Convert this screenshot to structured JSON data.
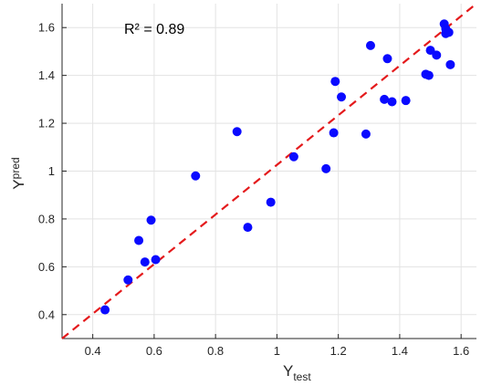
{
  "chart_data": {
    "type": "scatter",
    "annotation": "R² = 0.89",
    "xlabel": {
      "main": "Y",
      "sub": "test"
    },
    "ylabel": {
      "main": "Y",
      "sub": "pred"
    },
    "xlim": [
      0.3,
      1.65
    ],
    "ylim": [
      0.3,
      1.7
    ],
    "x_ticks": [
      0.4,
      0.6,
      0.8,
      1,
      1.2,
      1.4,
      1.6
    ],
    "x_tick_labels": [
      "0.4",
      "0.6",
      "0.8",
      "1",
      "1.2",
      "1.4",
      "1.6"
    ],
    "y_ticks": [
      0.4,
      0.6,
      0.8,
      1,
      1.2,
      1.4,
      1.6
    ],
    "y_tick_labels": [
      "0.4",
      "0.6",
      "0.8",
      "1",
      "1.2",
      "1.4",
      "1.6"
    ],
    "grid": true,
    "reference_line": {
      "style": "dashed",
      "color": "#e41a1c",
      "from": [
        0.3,
        0.3
      ],
      "to": [
        1.65,
        1.7
      ]
    },
    "marker_color": "#0a0aff",
    "points": [
      {
        "x": 0.44,
        "y": 0.42
      },
      {
        "x": 0.515,
        "y": 0.545
      },
      {
        "x": 0.55,
        "y": 0.71
      },
      {
        "x": 0.57,
        "y": 0.62
      },
      {
        "x": 0.59,
        "y": 0.795
      },
      {
        "x": 0.605,
        "y": 0.63
      },
      {
        "x": 0.735,
        "y": 0.98
      },
      {
        "x": 0.87,
        "y": 1.165
      },
      {
        "x": 0.905,
        "y": 0.765
      },
      {
        "x": 0.98,
        "y": 0.87
      },
      {
        "x": 1.055,
        "y": 1.06
      },
      {
        "x": 1.16,
        "y": 1.01
      },
      {
        "x": 1.185,
        "y": 1.16
      },
      {
        "x": 1.19,
        "y": 1.375
      },
      {
        "x": 1.21,
        "y": 1.31
      },
      {
        "x": 1.29,
        "y": 1.155
      },
      {
        "x": 1.305,
        "y": 1.525
      },
      {
        "x": 1.35,
        "y": 1.3
      },
      {
        "x": 1.36,
        "y": 1.47
      },
      {
        "x": 1.375,
        "y": 1.29
      },
      {
        "x": 1.42,
        "y": 1.295
      },
      {
        "x": 1.485,
        "y": 1.405
      },
      {
        "x": 1.495,
        "y": 1.4
      },
      {
        "x": 1.5,
        "y": 1.505
      },
      {
        "x": 1.52,
        "y": 1.485
      },
      {
        "x": 1.545,
        "y": 1.615
      },
      {
        "x": 1.55,
        "y": 1.595
      },
      {
        "x": 1.55,
        "y": 1.575
      },
      {
        "x": 1.56,
        "y": 1.58
      },
      {
        "x": 1.565,
        "y": 1.445
      }
    ]
  }
}
